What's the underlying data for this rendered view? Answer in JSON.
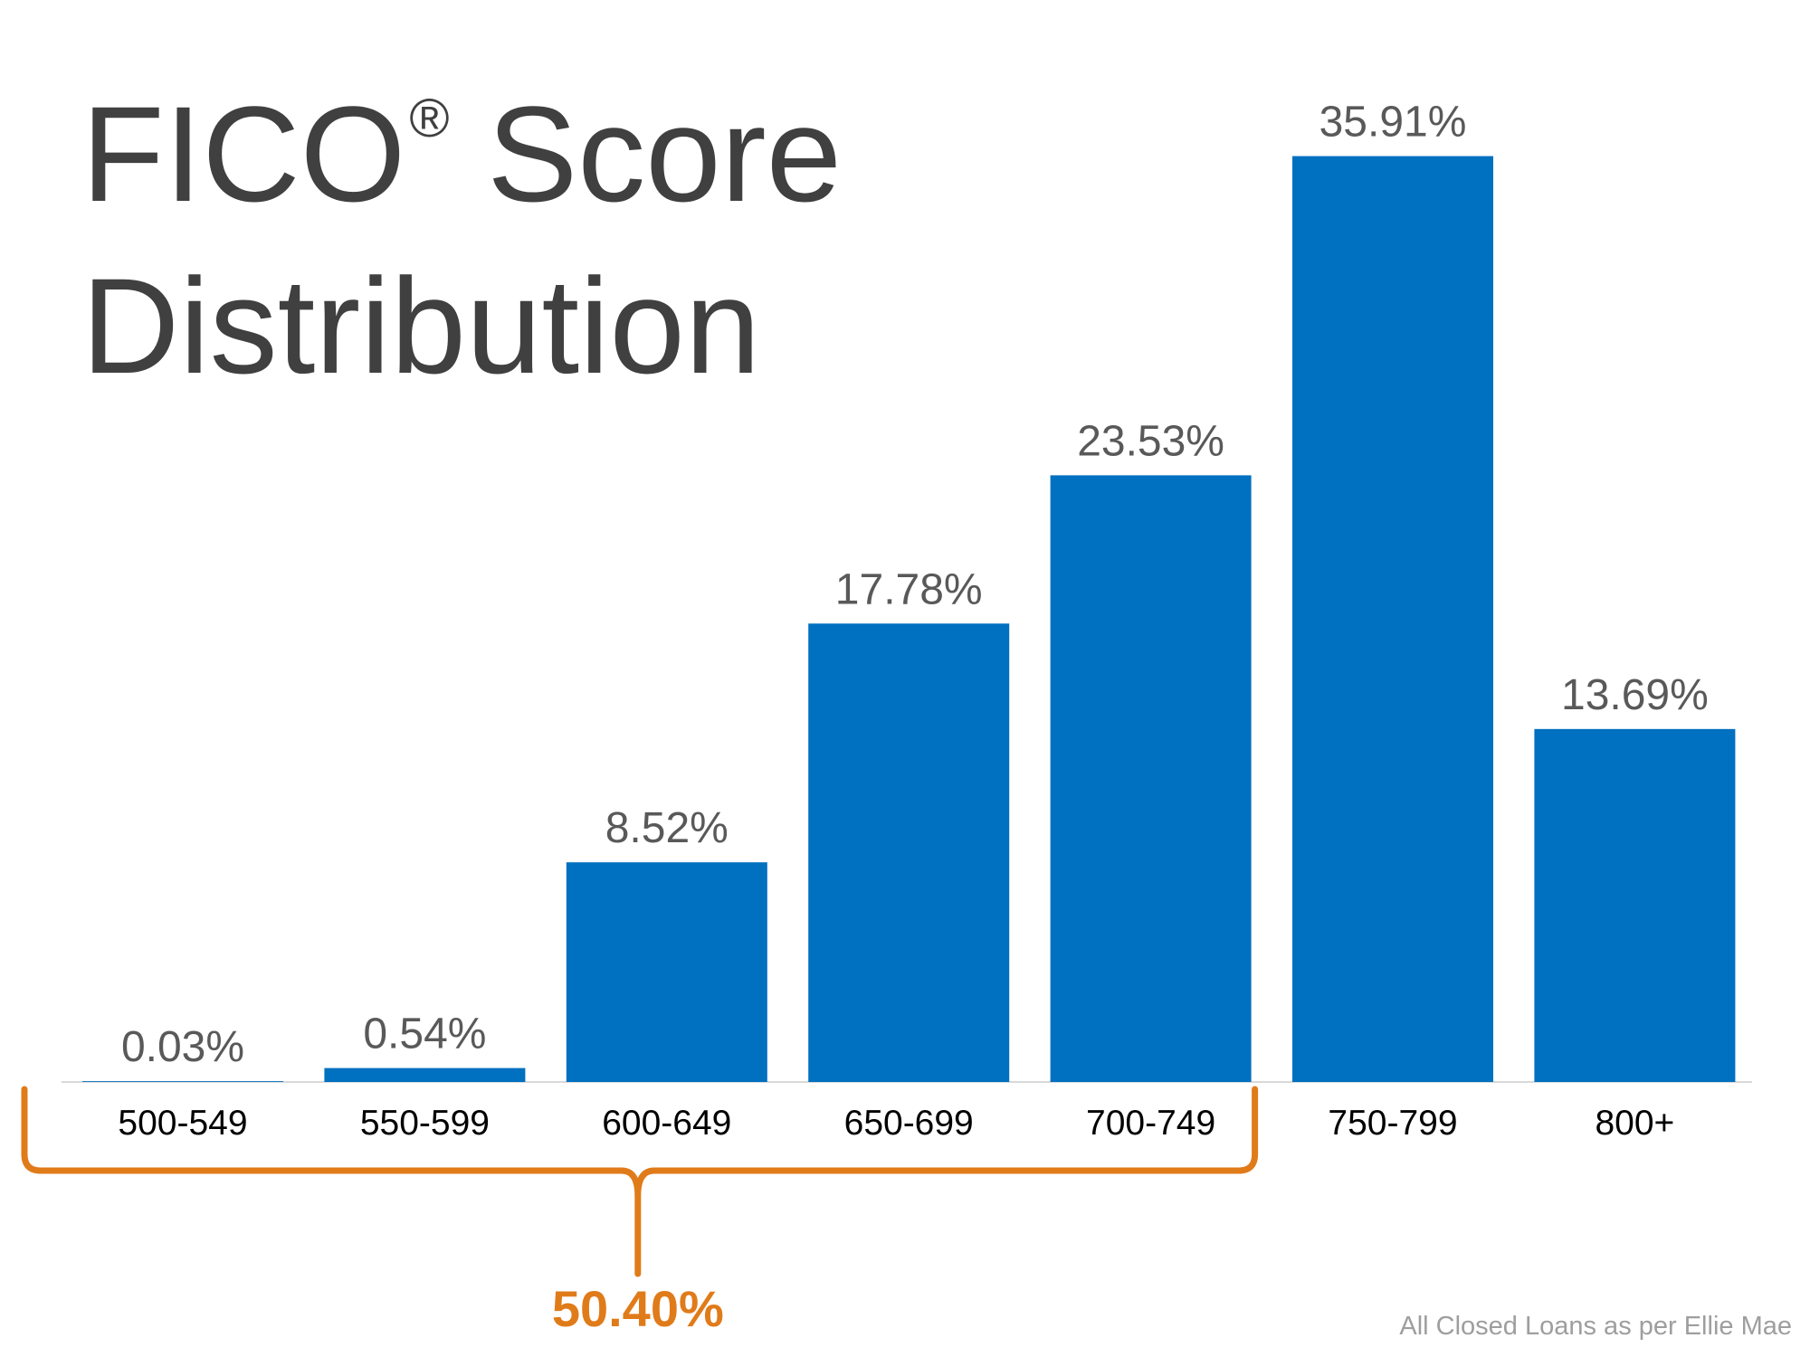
{
  "title": {
    "line1_prefix": "FICO",
    "line1_mark": "®",
    "line1_suffix": " Score",
    "line2": "Distribution"
  },
  "chart_data": {
    "type": "bar",
    "title": "FICO® Score Distribution",
    "categories": [
      "500-549",
      "550-599",
      "600-649",
      "650-699",
      "700-749",
      "750-799",
      "800+"
    ],
    "values": [
      0.03,
      0.54,
      8.52,
      17.78,
      23.53,
      35.91,
      13.69
    ],
    "value_labels": [
      "0.03%",
      "0.54%",
      "8.52%",
      "17.78%",
      "23.53%",
      "35.91%",
      "13.69%"
    ],
    "ylim": [
      0,
      40
    ],
    "xlabel": "",
    "ylabel": "",
    "grid": false,
    "bar_color": "#0070c0",
    "annotation": {
      "label": "50.40%",
      "spans": [
        "500-549",
        "700-749"
      ],
      "color": "#e07b1a"
    }
  },
  "source": "All Closed Loans as per Ellie Mae"
}
